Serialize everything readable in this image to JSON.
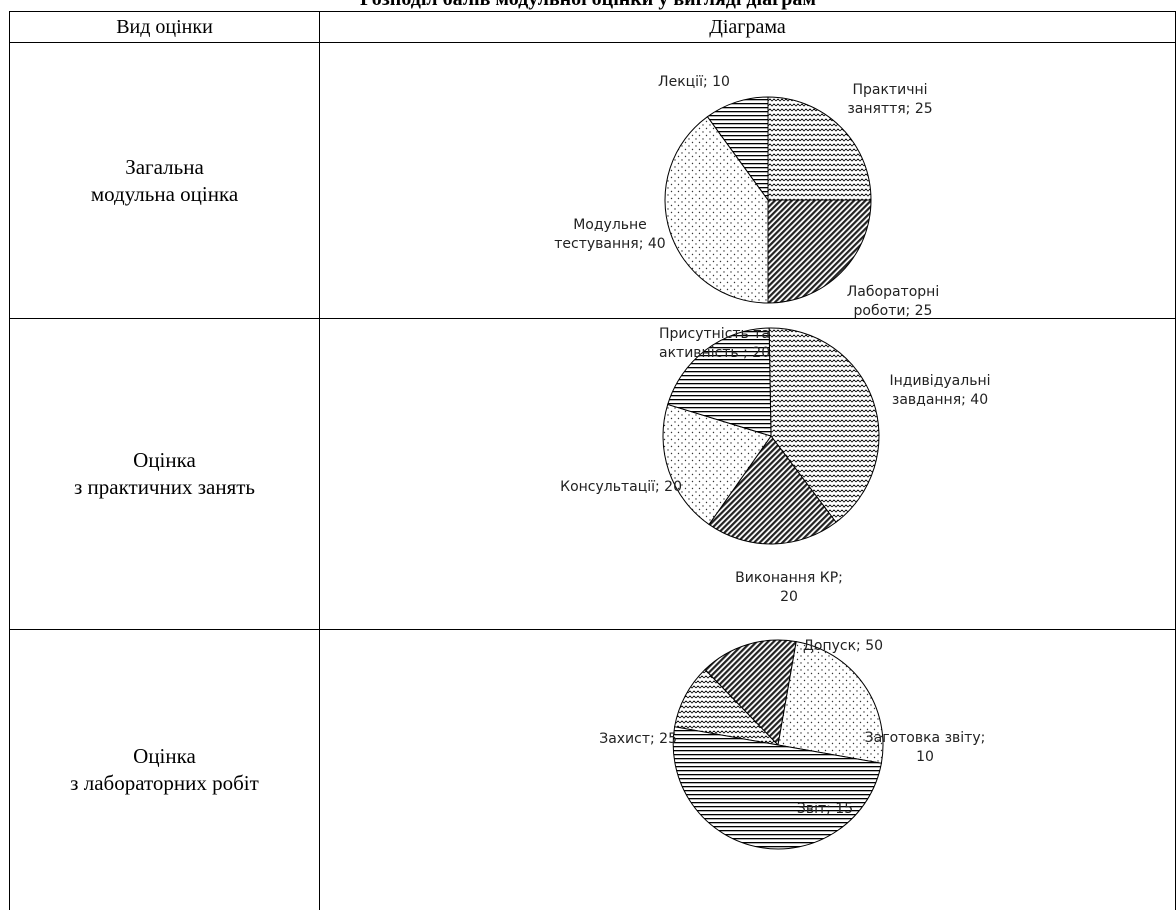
{
  "title": "Розподіл балів модульної оцінки у вигляді діаграм",
  "table": {
    "header": {
      "col1": "Вид оцінки",
      "col2": "Діаграма"
    },
    "rows": [
      {
        "label_line1": "Загальна",
        "label_line2": "модульна оцінка",
        "chart_data": {
          "type": "pie",
          "slices": [
            {
              "label_line1": "Практичні",
              "label_line2": "заняття; 25",
              "value": 25,
              "pattern": "wave"
            },
            {
              "label_line1": "Лабораторні",
              "label_line2": "роботи; 25",
              "value": 25,
              "pattern": "diagonal"
            },
            {
              "label_line1": "Модульне",
              "label_line2": "тестування; 40",
              "value": 40,
              "pattern": "dots"
            },
            {
              "label_line1": "Лекції; 10",
              "label_line2": "",
              "value": 10,
              "pattern": "horizontal"
            }
          ]
        }
      },
      {
        "label_line1": "Оцінка",
        "label_line2": "з практичних занять",
        "chart_data": {
          "type": "pie",
          "slices": [
            {
              "label_line1": "Індивідуальні",
              "label_line2": "завдання; 40",
              "value": 40,
              "pattern": "wave"
            },
            {
              "label_line1": "Виконання КР;",
              "label_line2": "20",
              "value": 20,
              "pattern": "diagonal"
            },
            {
              "label_line1": "Консультації; 20",
              "label_line2": "",
              "value": 20,
              "pattern": "dots"
            },
            {
              "label_line1": "Присутність та",
              "label_line2": "активність ; 20",
              "value": 20,
              "pattern": "horizontal"
            }
          ]
        }
      },
      {
        "label_line1": "Оцінка",
        "label_line2": "з лабораторних робіт",
        "chart_data": {
          "type": "pie",
          "slices": [
            {
              "label_line1": "Заготовка звіту;",
              "label_line2": "10",
              "value": 10,
              "pattern": "wave"
            },
            {
              "label_line1": "Звіт; 15",
              "label_line2": "",
              "value": 15,
              "pattern": "diagonal"
            },
            {
              "label_line1": "Захист; 25",
              "label_line2": "",
              "value": 25,
              "pattern": "dots"
            },
            {
              "label_line1": "Допуск; 50",
              "label_line2": "",
              "value": 50,
              "pattern": "horizontal"
            }
          ]
        }
      }
    ]
  }
}
